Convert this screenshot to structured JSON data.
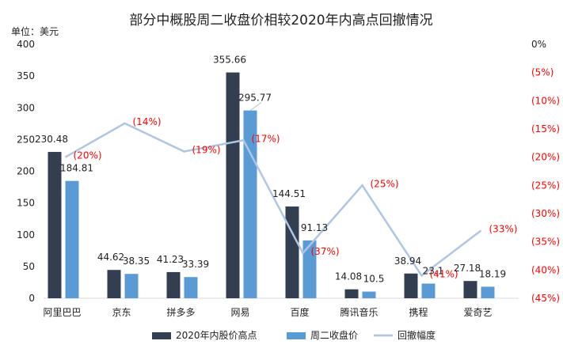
{
  "chart_data": {
    "type": "bar",
    "title": "部分中概股周二收盘价相较2020年内高点回撤情况",
    "unit_label": "单位：美元",
    "categories": [
      "阿里巴巴",
      "京东",
      "拼多多",
      "网易",
      "百度",
      "腾讯音乐",
      "携程",
      "爱奇艺"
    ],
    "series": [
      {
        "name": "2020年内股价高点",
        "kind": "bar",
        "axis": "left",
        "color": "#333f50",
        "values": [
          230.48,
          44.62,
          41.23,
          355.66,
          144.51,
          14.08,
          38.94,
          27.18
        ],
        "labels": [
          "230.48",
          "44.62",
          "41.23",
          "355.66",
          "144.51",
          "14.08",
          "38.94",
          "27.18"
        ]
      },
      {
        "name": "周二收盘价",
        "kind": "bar",
        "axis": "left",
        "color": "#5b9bd5",
        "values": [
          184.81,
          38.35,
          33.39,
          295.77,
          91.13,
          10.5,
          23.1,
          18.19
        ],
        "labels": [
          "184.81",
          "38.35",
          "33.39",
          "295.77",
          "91.13",
          "10.5",
          "23.1",
          "18.19"
        ]
      },
      {
        "name": "回撤幅度",
        "kind": "line",
        "axis": "right",
        "color": "#aec6e4",
        "values": [
          -20,
          -14,
          -19,
          -17,
          -37,
          -25,
          -41,
          -33
        ],
        "labels": [
          "(20%)",
          "(14%)",
          "(19%)",
          "(17%)",
          "(37%)",
          "(25%)",
          "(41%)",
          "(33%)"
        ]
      }
    ],
    "y_left": {
      "range": [
        0,
        400
      ],
      "ticks": [
        "0",
        "50",
        "100",
        "150",
        "200",
        "250",
        "300",
        "350",
        "400"
      ]
    },
    "y_right": {
      "range": [
        -45,
        0
      ],
      "ticks": [
        "0%",
        "(5%)",
        "(10%)",
        "(15%)",
        "(20%)",
        "(25%)",
        "(30%)",
        "(35%)",
        "(40%)",
        "(45%)"
      ],
      "color": "#ff0000"
    },
    "grid": false,
    "legend_position": "bottom"
  }
}
